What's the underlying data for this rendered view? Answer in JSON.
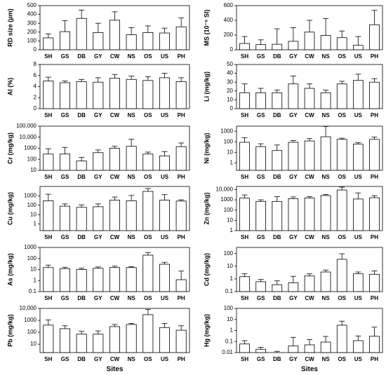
{
  "chart_data": [
    {
      "type": "bar",
      "ylabel": "RD size (μm)",
      "categories": [
        "SH",
        "GS",
        "DB",
        "GY",
        "CW",
        "NS",
        "OS",
        "US",
        "PH"
      ],
      "values": [
        135,
        205,
        355,
        195,
        335,
        170,
        195,
        190,
        260
      ],
      "errors": [
        45,
        125,
        95,
        105,
        95,
        80,
        75,
        55,
        100
      ],
      "ylim": [
        0,
        500
      ],
      "yticks": [
        0,
        100,
        200,
        300,
        400,
        500
      ],
      "log": false,
      "color": "#ffffff"
    },
    {
      "type": "bar",
      "ylabel": "MS (10⁻⁶ SI)",
      "categories": [
        "SH",
        "GS",
        "DB",
        "GY",
        "CW",
        "NS",
        "OS",
        "US",
        "PH"
      ],
      "values": [
        85,
        70,
        75,
        115,
        240,
        195,
        165,
        60,
        340
      ],
      "errors": [
        95,
        65,
        210,
        185,
        160,
        230,
        90,
        120,
        195
      ],
      "ylim": [
        0,
        600
      ],
      "yticks": [
        0,
        200,
        400,
        600
      ],
      "log": false,
      "color": "#ffffff"
    },
    {
      "type": "bar",
      "ylabel": "Al (%)",
      "categories": [
        "SH",
        "GS",
        "DB",
        "GY",
        "CW",
        "NS",
        "OS",
        "US",
        "PH"
      ],
      "values": [
        5.0,
        4.7,
        4.9,
        4.8,
        5.5,
        5.3,
        5.1,
        5.6,
        4.9
      ],
      "errors": [
        0.7,
        0.3,
        0.4,
        0.8,
        0.7,
        0.6,
        0.7,
        0.8,
        0.7
      ],
      "ylim": [
        0,
        8
      ],
      "yticks": [
        0,
        2,
        4,
        6,
        8
      ],
      "log": false,
      "color": "#ffffff"
    },
    {
      "type": "bar",
      "ylabel": "Li (mg/kg)",
      "categories": [
        "SH",
        "GS",
        "DB",
        "GY",
        "CW",
        "NS",
        "OS",
        "US",
        "PH"
      ],
      "values": [
        18,
        18,
        18,
        28,
        23,
        18,
        28,
        32,
        30
      ],
      "errors": [
        10,
        5,
        3,
        9,
        5,
        3,
        3,
        7,
        4
      ],
      "ylim": [
        0,
        50
      ],
      "yticks": [
        0,
        10,
        20,
        30,
        40,
        50
      ],
      "log": false,
      "color": "#ffffff"
    },
    {
      "type": "bar",
      "ylabel": "Cr (mg/kg)",
      "categories": [
        "SH",
        "GS",
        "DB",
        "GY",
        "CW",
        "NS",
        "OS",
        "US",
        "PH"
      ],
      "values": [
        300,
        300,
        70,
        400,
        1000,
        1500,
        300,
        200,
        1400
      ],
      "errors": [
        600,
        900,
        80,
        300,
        500,
        5000,
        150,
        300,
        1600
      ],
      "ylim": [
        10,
        100000
      ],
      "yticks": [
        10,
        100,
        1000,
        {
          "value": 10000,
          "label": "10,000"
        },
        {
          "value": 100000,
          "label": "100,000"
        }
      ],
      "log": true,
      "color": "#ffffff"
    },
    {
      "type": "bar",
      "ylabel": "Ni (mg/kg)",
      "categories": [
        "SH",
        "GS",
        "DB",
        "GY",
        "CW",
        "NS",
        "OS",
        "US",
        "PH"
      ],
      "values": [
        90,
        35,
        15,
        90,
        120,
        300,
        170,
        60,
        170
      ],
      "errors": [
        150,
        30,
        35,
        40,
        80,
        2500,
        50,
        25,
        110
      ],
      "ylim": [
        0.2,
        3000
      ],
      "yticks": [
        1,
        10,
        100,
        1000
      ],
      "log": true,
      "color": "#ffffff"
    },
    {
      "type": "bar",
      "ylabel": "Cu (mg/kg)",
      "categories": [
        "SH",
        "GS",
        "DB",
        "GY",
        "CW",
        "NS",
        "OS",
        "US",
        "PH"
      ],
      "values": [
        300,
        80,
        60,
        70,
        350,
        300,
        3000,
        350,
        280
      ],
      "errors": [
        1200,
        60,
        50,
        70,
        400,
        800,
        3000,
        1000,
        100
      ],
      "ylim": [
        0.2,
        10000
      ],
      "yticks": [
        1,
        10,
        100,
        1000
      ],
      "log": true,
      "color": "#ffffff"
    },
    {
      "type": "bar",
      "ylabel": "Zn (mg/kg)",
      "categories": [
        "SH",
        "GS",
        "DB",
        "GY",
        "CW",
        "NS",
        "OS",
        "US",
        "PH"
      ],
      "values": [
        1500,
        700,
        700,
        1300,
        1500,
        2600,
        9000,
        1200,
        1600
      ],
      "errors": [
        1500,
        300,
        1300,
        600,
        600,
        700,
        8000,
        3500,
        900
      ],
      "ylim": [
        1,
        20000
      ],
      "yticks": [
        1,
        10,
        100,
        1000,
        {
          "value": 10000,
          "label": "10,000"
        }
      ],
      "log": true,
      "color": "#ffffff"
    },
    {
      "type": "bar",
      "ylabel": "As (mg/kg)",
      "categories": [
        "SH",
        "GS",
        "DB",
        "GY",
        "CW",
        "NS",
        "OS",
        "US",
        "PH"
      ],
      "values": [
        15,
        12,
        10,
        13,
        15,
        15,
        200,
        30,
        1.2
      ],
      "errors": [
        10,
        4,
        3,
        4,
        5,
        3,
        150,
        15,
        6
      ],
      "ylim": [
        0.1,
        1000
      ],
      "yticks": [
        0.1,
        1,
        10,
        100,
        1000
      ],
      "log": true,
      "color": "#ffffff"
    },
    {
      "type": "bar",
      "ylabel": "Cd (mg/kg)",
      "categories": [
        "SH",
        "GS",
        "DB",
        "GY",
        "CW",
        "NS",
        "OS",
        "US",
        "PH"
      ],
      "values": [
        1.5,
        0.6,
        0.35,
        0.5,
        1.7,
        3.5,
        35,
        2.5,
        2.3
      ],
      "errors": [
        1,
        0.3,
        0.35,
        1.1,
        0.8,
        1.5,
        60,
        1,
        2
      ],
      "ylim": [
        0.1,
        300
      ],
      "yticks": [
        0.1,
        1,
        10,
        100
      ],
      "log": true,
      "color": "#ffffff"
    },
    {
      "type": "bar",
      "ylabel": "Pb (mg/kg)",
      "xlabel": "Sites",
      "categories": [
        "SH",
        "GS",
        "DB",
        "GY",
        "CW",
        "NS",
        "OS",
        "US",
        "PH"
      ],
      "values": [
        400,
        200,
        70,
        70,
        300,
        450,
        3000,
        250,
        150
      ],
      "errors": [
        700,
        150,
        50,
        60,
        150,
        100,
        5000,
        300,
        200
      ],
      "ylim": [
        2,
        10000
      ],
      "yticks": [
        10,
        100,
        1000,
        {
          "value": 10000,
          "label": "10,000"
        }
      ],
      "log": true,
      "color": "#ffffff"
    },
    {
      "type": "bar",
      "ylabel": "Hg (mg/kg)",
      "xlabel": "Sites",
      "categories": [
        "SH",
        "GS",
        "DB",
        "GY",
        "CW",
        "NS",
        "OS",
        "US",
        "PH"
      ],
      "values": [
        0.06,
        0.02,
        0.01,
        0.04,
        0.05,
        0.09,
        3,
        0.12,
        0.3
      ],
      "errors": [
        0.06,
        0.01,
        0.003,
        0.2,
        0.1,
        0.2,
        4,
        0.2,
        1.7
      ],
      "ylim": [
        0.01,
        100
      ],
      "yticks": [
        0.01,
        0.1,
        1,
        10,
        100
      ],
      "log": true,
      "color": "#ffffff"
    }
  ]
}
